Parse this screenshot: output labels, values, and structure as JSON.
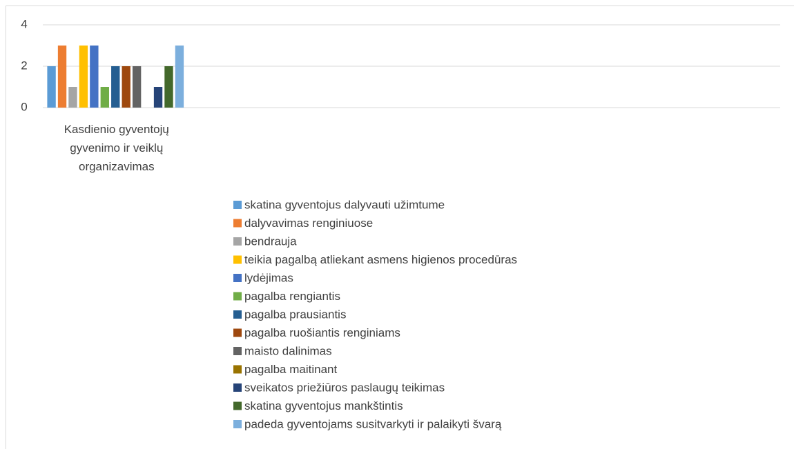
{
  "chart_data": {
    "type": "bar",
    "categories": [
      "Kasdienio gyventojų gyvenimo ir veiklų organizavimas",
      null,
      null,
      null,
      null
    ],
    "series": [
      {
        "name": "skatina gyventojus dalyvauti užimtume",
        "color": "#5B9BD5",
        "values": [
          2,
          null,
          null,
          null,
          null
        ]
      },
      {
        "name": "dalyvavimas renginiuose",
        "color": "#ED7D31",
        "values": [
          3,
          null,
          null,
          null,
          null
        ]
      },
      {
        "name": "bendrauja",
        "color": "#A5A5A5",
        "values": [
          1,
          null,
          null,
          null,
          null
        ]
      },
      {
        "name": "teikia pagalbą atliekant asmens higienos procedūras",
        "color": "#FFC000",
        "values": [
          3,
          null,
          null,
          null,
          null
        ]
      },
      {
        "name": "lydėjimas",
        "color": "#4472C4",
        "values": [
          3,
          null,
          null,
          null,
          null
        ]
      },
      {
        "name": "pagalba rengiantis",
        "color": "#70AD47",
        "values": [
          1,
          null,
          null,
          null,
          null
        ]
      },
      {
        "name": "pagalba prausiantis",
        "color": "#255E91",
        "values": [
          2,
          null,
          null,
          null,
          null
        ]
      },
      {
        "name": "pagalba ruošiantis renginiams",
        "color": "#9E480E",
        "values": [
          2,
          null,
          null,
          null,
          null
        ]
      },
      {
        "name": "maisto dalinimas",
        "color": "#636363",
        "values": [
          2,
          null,
          null,
          null,
          null
        ]
      },
      {
        "name": "pagalba maitinant",
        "color": "#997300",
        "values": [
          0,
          null,
          null,
          null,
          null
        ]
      },
      {
        "name": "sveikatos priežiūros paslaugų teikimas",
        "color": "#264478",
        "values": [
          1,
          null,
          null,
          null,
          null
        ]
      },
      {
        "name": "skatina gyventojus mankštintis",
        "color": "#43682B",
        "values": [
          2,
          null,
          null,
          null,
          null
        ]
      },
      {
        "name": "padeda gyventojams susitvarkyti ir palaikyti švarą",
        "color": "#7CAFDD",
        "values": [
          3,
          null,
          null,
          null,
          null
        ]
      }
    ],
    "ylim": [
      0,
      4
    ],
    "yticks": [
      0,
      2,
      4
    ],
    "grid": true,
    "legend": "bottom"
  }
}
